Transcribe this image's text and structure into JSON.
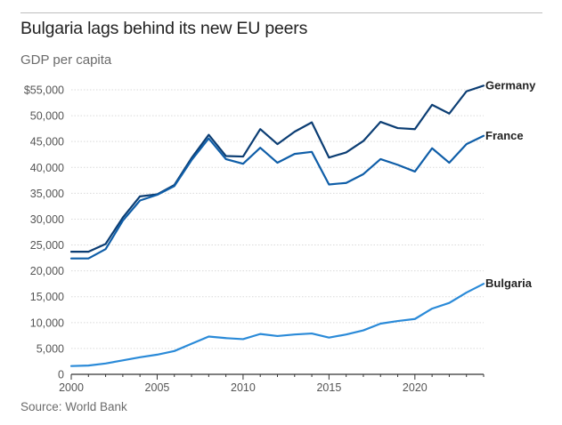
{
  "header": {
    "title": "Bulgaria lags behind its new EU peers",
    "subtitle": "GDP per capita"
  },
  "footer": {
    "source": "Source: World Bank"
  },
  "chart_data": {
    "type": "line",
    "title": "Bulgaria lags behind its new EU peers",
    "subtitle": "GDP per capita",
    "xlabel": "",
    "ylabel": "GDP per capita",
    "xlim": [
      2000,
      2024
    ],
    "ylim": [
      0,
      55000
    ],
    "grid": true,
    "x_ticks": [
      2000,
      2005,
      2010,
      2015,
      2020
    ],
    "x_tick_labels": [
      "2000",
      "2005",
      "2010",
      "2015",
      "2020"
    ],
    "y_ticks": [
      0,
      5000,
      10000,
      15000,
      20000,
      25000,
      30000,
      35000,
      40000,
      45000,
      50000,
      55000
    ],
    "y_tick_labels": [
      "0",
      "5,000",
      "10,000",
      "15,000",
      "20,000",
      "25,000",
      "30,000",
      "35,000",
      "40,000",
      "45,000",
      "50,000",
      "$55,000"
    ],
    "x": [
      2000,
      2001,
      2002,
      2003,
      2004,
      2005,
      2006,
      2007,
      2008,
      2009,
      2010,
      2011,
      2012,
      2013,
      2014,
      2015,
      2016,
      2017,
      2018,
      2019,
      2020,
      2021,
      2022,
      2023,
      2024
    ],
    "series": [
      {
        "name": "Germany",
        "color": "#0b3d73",
        "values": [
          23700,
          23700,
          25200,
          30300,
          34400,
          34800,
          36600,
          41800,
          46300,
          42200,
          42100,
          47400,
          44500,
          46900,
          48700,
          41900,
          42900,
          45100,
          48800,
          47600,
          47400,
          52100,
          50400,
          54700,
          55800
        ]
      },
      {
        "name": "France",
        "color": "#0f5ea8",
        "values": [
          22400,
          22400,
          24200,
          29700,
          33600,
          34700,
          36400,
          41400,
          45600,
          41600,
          40700,
          43800,
          40900,
          42600,
          43000,
          36700,
          37000,
          38700,
          41600,
          40500,
          39200,
          43700,
          40900,
          44500,
          46100
        ]
      },
      {
        "name": "Bulgaria",
        "color": "#2a8ad8",
        "values": [
          1600,
          1700,
          2100,
          2700,
          3300,
          3800,
          4500,
          5900,
          7300,
          7000,
          6800,
          7800,
          7400,
          7700,
          7900,
          7100,
          7700,
          8500,
          9800,
          10300,
          10700,
          12700,
          13800,
          15800,
          17500
        ]
      }
    ],
    "series_labels": [
      "Germany",
      "France",
      "Bulgaria"
    ]
  }
}
